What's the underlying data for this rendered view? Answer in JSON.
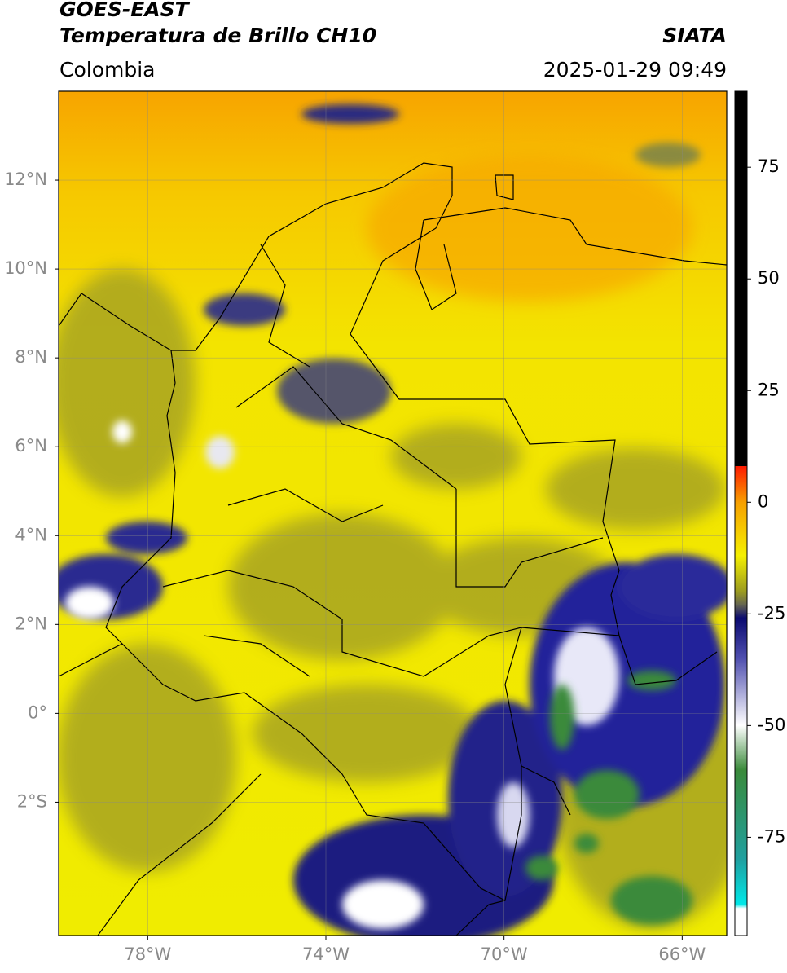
{
  "header": {
    "satellite": "GOES-EAST",
    "product": "Temperatura de Brillo CH10",
    "region": "Colombia",
    "source": "SIATA",
    "datetime": "2025-01-29 09:49"
  },
  "map": {
    "lon_lim": [
      -80,
      -65
    ],
    "lat_lim": [
      -5,
      14
    ],
    "lat_ticks": [
      {
        "value": 12,
        "label": "12°N"
      },
      {
        "value": 10,
        "label": "10°N"
      },
      {
        "value": 8,
        "label": "8°N"
      },
      {
        "value": 6,
        "label": "6°N"
      },
      {
        "value": 4,
        "label": "4°N"
      },
      {
        "value": 2,
        "label": "2°N"
      },
      {
        "value": 0,
        "label": "0°"
      },
      {
        "value": -2,
        "label": "2°S"
      }
    ],
    "lon_ticks": [
      {
        "value": -78,
        "label": "78°W"
      },
      {
        "value": -74,
        "label": "74°W"
      },
      {
        "value": -70,
        "label": "70°W"
      },
      {
        "value": -66,
        "label": "66°W"
      }
    ]
  },
  "colorbar": {
    "lim": [
      -97,
      92
    ],
    "ticks": [
      75,
      50,
      25,
      0,
      -25,
      -50,
      -75
    ]
  }
}
